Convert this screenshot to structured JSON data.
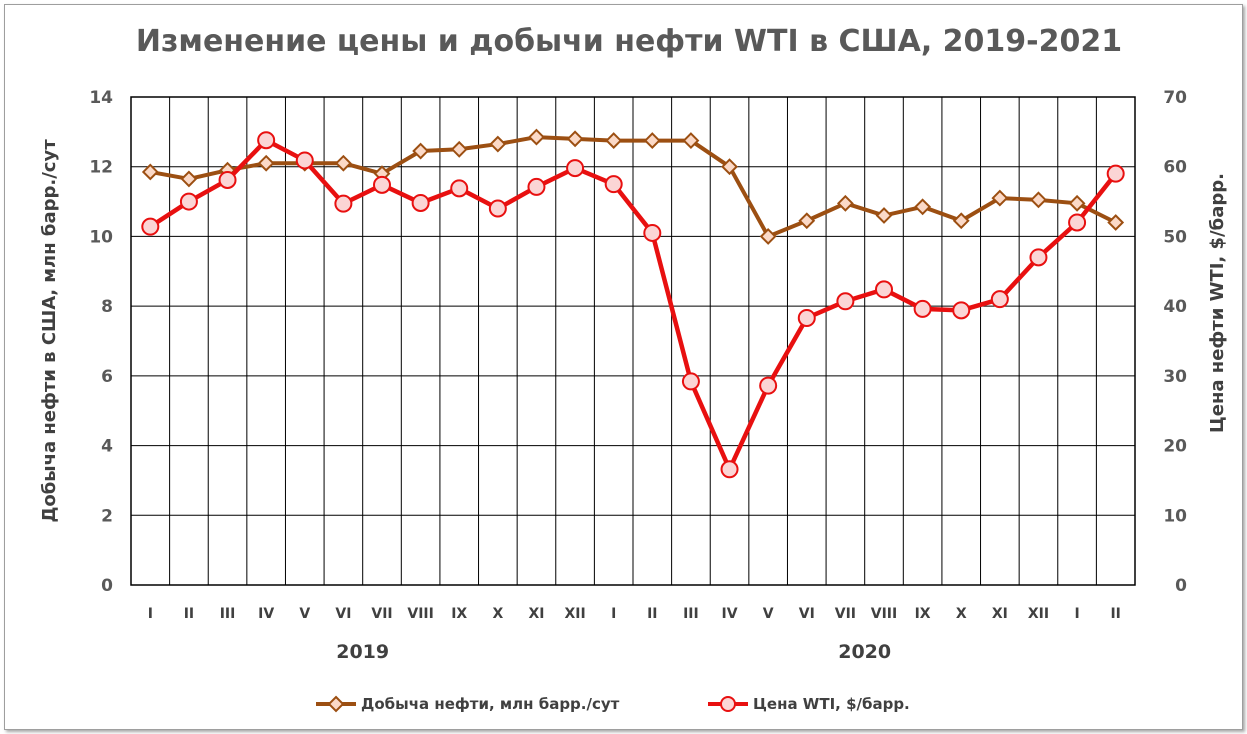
{
  "chart_data": {
    "type": "line",
    "title": "Изменение цены и добычи нефти WTI в США, 2019-2021",
    "categories": [
      "I",
      "II",
      "III",
      "IV",
      "V",
      "VI",
      "VII",
      "VIII",
      "IX",
      "X",
      "XI",
      "XII",
      "I",
      "II",
      "III",
      "IV",
      "V",
      "VI",
      "VII",
      "VIII",
      "IX",
      "X",
      "XI",
      "XII",
      "I",
      "II"
    ],
    "year_labels": [
      {
        "label": "2019",
        "start": 0,
        "end": 11
      },
      {
        "label": "2020",
        "start": 12,
        "end": 25
      }
    ],
    "ylabel_left": "Добыча нефти в США, млн барр./сут",
    "ylabel_right": "Цена нефти WTI, $/барр.",
    "ylim_left": [
      0,
      14
    ],
    "yticks_left": [
      "0",
      "2",
      "4",
      "6",
      "8",
      "10",
      "12",
      "14"
    ],
    "ylim_right": [
      0,
      70
    ],
    "yticks_right": [
      "0",
      "10",
      "20",
      "30",
      "40",
      "50",
      "60",
      "70"
    ],
    "grid": true,
    "legend_position": "bottom",
    "series": [
      {
        "name": "Добыча нефти, млн барр./сут",
        "axis": "left",
        "color": "#9C4F12",
        "marker": "diamond",
        "values": [
          11.85,
          11.65,
          11.9,
          12.1,
          12.1,
          12.1,
          11.8,
          12.45,
          12.5,
          12.65,
          12.85,
          12.8,
          12.75,
          12.75,
          12.75,
          12.0,
          10.0,
          10.45,
          10.95,
          10.6,
          10.85,
          10.45,
          11.1,
          11.05,
          10.95,
          10.4
        ]
      },
      {
        "name": "Цена WTI, $/барр.",
        "axis": "right",
        "color": "#E81010",
        "marker": "circle",
        "values": [
          51.4,
          55.0,
          58.1,
          63.8,
          60.9,
          54.7,
          57.4,
          54.8,
          56.9,
          54.0,
          57.1,
          59.8,
          57.5,
          50.5,
          29.2,
          16.6,
          28.6,
          38.3,
          40.7,
          42.4,
          39.6,
          39.4,
          41.0,
          47.0,
          52.0,
          59.0
        ]
      }
    ]
  }
}
